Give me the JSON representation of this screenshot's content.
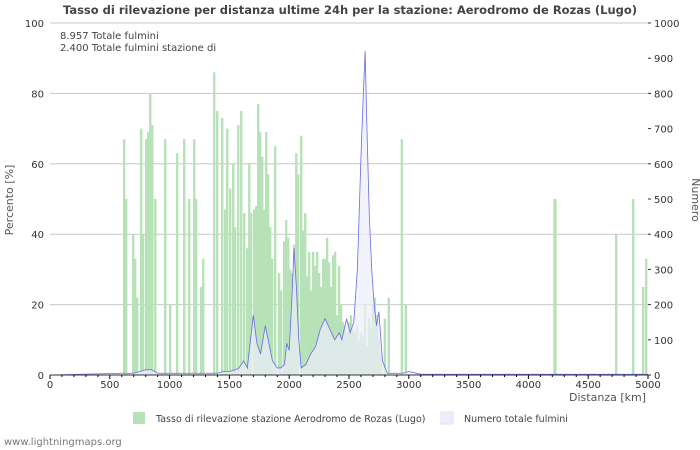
{
  "chart_data": {
    "type": "bar",
    "title": "Tasso di rilevazione per distanza ultime 24h per la stazione: Aerodromo de Rozas (Lugo)",
    "info": [
      "8.957 Totale fulmini",
      "2.400 Totale fulmini stazione di"
    ],
    "xlabel": "Distanza   [km]",
    "ylabel": "Percento   [%]",
    "y2label": "Numero",
    "xlim": [
      0,
      5000
    ],
    "ylim": [
      0,
      100
    ],
    "y2lim": [
      0,
      1000
    ],
    "xticks": [
      0,
      500,
      1000,
      1500,
      2000,
      2500,
      3000,
      3500,
      4000,
      4500,
      5000
    ],
    "yticks": [
      0,
      20,
      40,
      60,
      80,
      100
    ],
    "y2ticks": [
      0,
      100,
      200,
      300,
      400,
      500,
      600,
      700,
      800,
      900,
      1000
    ],
    "grid": true,
    "legend_position": "bottom",
    "series": [
      {
        "name": "Tasso di rilevazione stazione Aerodromo de Rozas (Lugo)",
        "type": "bar",
        "color": "#b7e2b7",
        "points": [
          [
            610,
            67
          ],
          [
            627,
            50
          ],
          [
            686,
            40
          ],
          [
            702,
            33
          ],
          [
            719,
            22
          ],
          [
            752,
            70
          ],
          [
            769,
            40
          ],
          [
            794,
            67
          ],
          [
            811,
            69
          ],
          [
            828,
            80
          ],
          [
            845,
            71
          ],
          [
            870,
            50
          ],
          [
            953,
            67
          ],
          [
            995,
            20
          ],
          [
            1053,
            63
          ],
          [
            1112,
            67
          ],
          [
            1154,
            50
          ],
          [
            1196,
            67
          ],
          [
            1212,
            50
          ],
          [
            1254,
            25
          ],
          [
            1271,
            33
          ],
          [
            1363,
            86
          ],
          [
            1388,
            75
          ],
          [
            1430,
            73
          ],
          [
            1455,
            47
          ],
          [
            1472,
            70
          ],
          [
            1497,
            53
          ],
          [
            1522,
            60
          ],
          [
            1538,
            42
          ],
          [
            1564,
            71
          ],
          [
            1589,
            75
          ],
          [
            1614,
            46
          ],
          [
            1639,
            36
          ],
          [
            1656,
            60
          ],
          [
            1672,
            46
          ],
          [
            1697,
            47
          ],
          [
            1714,
            48
          ],
          [
            1731,
            77
          ],
          [
            1748,
            69
          ],
          [
            1764,
            62
          ],
          [
            1781,
            47
          ],
          [
            1798,
            69
          ],
          [
            1814,
            57
          ],
          [
            1831,
            42
          ],
          [
            1848,
            33
          ],
          [
            1873,
            65
          ],
          [
            1906,
            29
          ],
          [
            1923,
            24
          ],
          [
            1948,
            38
          ],
          [
            1965,
            44
          ],
          [
            1982,
            39
          ],
          [
            1998,
            30
          ],
          [
            2015,
            29
          ],
          [
            2032,
            37
          ],
          [
            2049,
            63
          ],
          [
            2065,
            57
          ],
          [
            2090,
            68
          ],
          [
            2107,
            41
          ],
          [
            2124,
            46
          ],
          [
            2140,
            28
          ],
          [
            2157,
            35
          ],
          [
            2174,
            24
          ],
          [
            2190,
            35
          ],
          [
            2207,
            31
          ],
          [
            2224,
            35
          ],
          [
            2240,
            29
          ],
          [
            2257,
            25
          ],
          [
            2274,
            33
          ],
          [
            2290,
            33
          ],
          [
            2307,
            39
          ],
          [
            2324,
            32
          ],
          [
            2340,
            25
          ],
          [
            2357,
            34
          ],
          [
            2374,
            35
          ],
          [
            2390,
            17
          ],
          [
            2407,
            31
          ],
          [
            2424,
            20
          ],
          [
            2440,
            15
          ],
          [
            2457,
            14
          ],
          [
            2474,
            12
          ],
          [
            2490,
            15
          ],
          [
            2507,
            17
          ],
          [
            2524,
            13
          ],
          [
            2540,
            12
          ],
          [
            2557,
            14
          ],
          [
            2574,
            10
          ],
          [
            2590,
            12
          ],
          [
            2607,
            11
          ],
          [
            2624,
            20
          ],
          [
            2640,
            8
          ],
          [
            2657,
            16
          ],
          [
            2674,
            13
          ],
          [
            2690,
            20
          ],
          [
            2707,
            22
          ],
          [
            2724,
            17
          ],
          [
            2740,
            10
          ],
          [
            2757,
            6
          ],
          [
            2790,
            16
          ],
          [
            2823,
            22
          ],
          [
            2932,
            67
          ],
          [
            2965,
            20
          ],
          [
            4208,
            50
          ],
          [
            4216,
            50
          ],
          [
            4724,
            40
          ],
          [
            4866,
            50
          ],
          [
            4950,
            25
          ],
          [
            4975,
            33
          ]
        ]
      },
      {
        "name": "Numero totale fulmini",
        "type": "line",
        "color": "#6a6ae8",
        "fill": "#eeeefb",
        "points": [
          [
            0,
            0
          ],
          [
            600,
            5
          ],
          [
            700,
            5
          ],
          [
            750,
            10
          ],
          [
            800,
            15
          ],
          [
            850,
            15
          ],
          [
            900,
            5
          ],
          [
            1000,
            5
          ],
          [
            1100,
            5
          ],
          [
            1200,
            5
          ],
          [
            1300,
            5
          ],
          [
            1400,
            5
          ],
          [
            1450,
            10
          ],
          [
            1500,
            10
          ],
          [
            1550,
            15
          ],
          [
            1580,
            20
          ],
          [
            1620,
            40
          ],
          [
            1650,
            20
          ],
          [
            1680,
            110
          ],
          [
            1700,
            170
          ],
          [
            1730,
            90
          ],
          [
            1760,
            60
          ],
          [
            1800,
            140
          ],
          [
            1830,
            90
          ],
          [
            1860,
            40
          ],
          [
            1900,
            20
          ],
          [
            1930,
            20
          ],
          [
            1960,
            30
          ],
          [
            1980,
            90
          ],
          [
            2000,
            70
          ],
          [
            2020,
            200
          ],
          [
            2040,
            360
          ],
          [
            2060,
            250
          ],
          [
            2080,
            100
          ],
          [
            2100,
            20
          ],
          [
            2140,
            30
          ],
          [
            2180,
            60
          ],
          [
            2220,
            80
          ],
          [
            2260,
            130
          ],
          [
            2300,
            160
          ],
          [
            2340,
            130
          ],
          [
            2380,
            100
          ],
          [
            2420,
            120
          ],
          [
            2440,
            100
          ],
          [
            2480,
            160
          ],
          [
            2510,
            120
          ],
          [
            2540,
            150
          ],
          [
            2570,
            300
          ],
          [
            2600,
            620
          ],
          [
            2620,
            800
          ],
          [
            2635,
            920
          ],
          [
            2650,
            700
          ],
          [
            2670,
            450
          ],
          [
            2690,
            300
          ],
          [
            2710,
            200
          ],
          [
            2730,
            140
          ],
          [
            2750,
            180
          ],
          [
            2780,
            40
          ],
          [
            2820,
            5
          ],
          [
            2900,
            5
          ],
          [
            2950,
            5
          ],
          [
            3000,
            10
          ],
          [
            3100,
            2
          ],
          [
            4200,
            2
          ],
          [
            4700,
            2
          ],
          [
            5000,
            2
          ]
        ]
      }
    ]
  },
  "footer": "www.lightningmaps.org"
}
